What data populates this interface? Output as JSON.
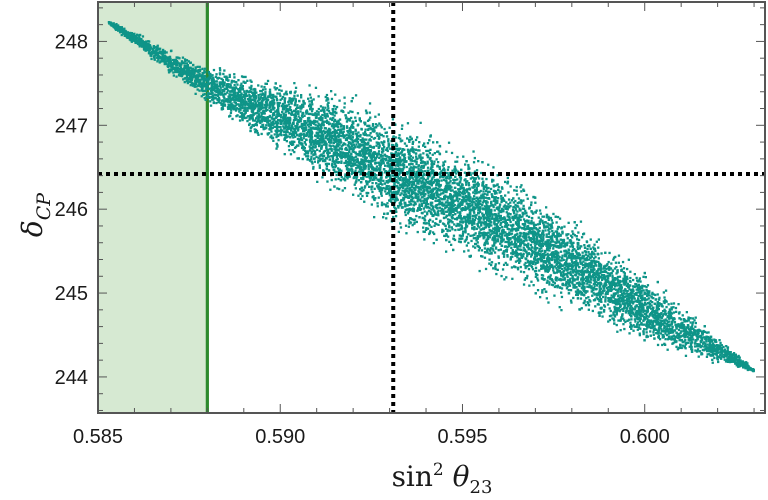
{
  "chart_data": {
    "type": "scatter",
    "title": "",
    "xlabel": "sin² θ₂₃",
    "ylabel": "δ_CP",
    "xlim": [
      0.585,
      0.6033
    ],
    "ylim": [
      243.57,
      248.47
    ],
    "x_ticks": [
      {
        "value": 0.585,
        "label": "0.585"
      },
      {
        "value": 0.59,
        "label": "0.590"
      },
      {
        "value": 0.595,
        "label": "0.595"
      },
      {
        "value": 0.6,
        "label": "0.600"
      }
    ],
    "y_ticks": [
      {
        "value": 244,
        "label": "244"
      },
      {
        "value": 245,
        "label": "245"
      },
      {
        "value": 246,
        "label": "246"
      },
      {
        "value": 247,
        "label": "247"
      },
      {
        "value": 248,
        "label": "248"
      }
    ],
    "grid": false,
    "point_color": "#0e9488",
    "band": {
      "x_min": 0.585,
      "x_max": 0.588,
      "fill": "#d6e9d2",
      "edge_color": "#2d8a2d"
    },
    "reference_lines": {
      "x": 0.5931,
      "y": 246.42,
      "style": "dotted",
      "color": "#000000"
    },
    "point_cloud": {
      "n_points": 9000,
      "upper_edge": [
        [
          0.5853,
          248.25
        ],
        [
          0.588,
          247.75
        ],
        [
          0.592,
          247.45
        ],
        [
          0.596,
          246.6
        ],
        [
          0.599,
          245.7
        ],
        [
          0.603,
          244.1
        ]
      ],
      "lower_edge": [
        [
          0.5853,
          248.2
        ],
        [
          0.588,
          247.2
        ],
        [
          0.593,
          245.7
        ],
        [
          0.597,
          244.9
        ],
        [
          0.6,
          244.3
        ],
        [
          0.603,
          244.05
        ]
      ]
    }
  }
}
